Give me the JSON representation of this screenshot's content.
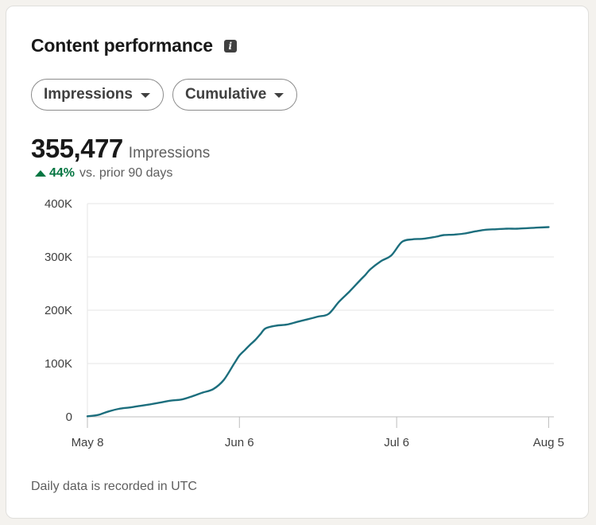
{
  "card": {
    "title": "Content performance",
    "info_icon": "info-icon",
    "metric_dropdown": "Impressions",
    "mode_dropdown": "Cumulative",
    "metric_value": "355,477",
    "metric_label": "Impressions",
    "change_pct": "44%",
    "change_text": "vs. prior 90 days",
    "change_color": "#057642",
    "footer": "Daily data is recorded in UTC"
  },
  "chart_data": {
    "type": "line",
    "title": "",
    "xlabel": "",
    "ylabel": "",
    "ylim": [
      0,
      400000
    ],
    "yticks": [
      0,
      100000,
      200000,
      300000,
      400000
    ],
    "ytick_labels": [
      "0",
      "100K",
      "200K",
      "300K",
      "400K"
    ],
    "xlim": [
      0,
      89
    ],
    "xticks": [
      0,
      29,
      59,
      88
    ],
    "xtick_labels": [
      "May 8",
      "Jun 6",
      "Jul 6",
      "Aug 5"
    ],
    "grid": true,
    "line_color": "#1c6e7d",
    "series": [
      {
        "name": "",
        "x": [
          0,
          2,
          4,
          6,
          8,
          10,
          12,
          14,
          16,
          18,
          20,
          22,
          24,
          26,
          28,
          29,
          30,
          31,
          32,
          33,
          34,
          36,
          38,
          40,
          42,
          44,
          46,
          48,
          50,
          52,
          53,
          54,
          56,
          58,
          60,
          62,
          64,
          66,
          67,
          68,
          70,
          72,
          74,
          76,
          78,
          80,
          82,
          84,
          86,
          88
        ],
        "y": [
          1000,
          3500,
          10000,
          15000,
          17500,
          20500,
          23500,
          27000,
          30500,
          32500,
          38500,
          45500,
          52000,
          69000,
          100000,
          115000,
          125000,
          135000,
          144000,
          155000,
          166000,
          171000,
          173000,
          178000,
          183000,
          188000,
          193000,
          216000,
          235000,
          256000,
          266000,
          277000,
          292000,
          303000,
          328000,
          333000,
          334000,
          337000,
          339000,
          341000,
          342000,
          344000,
          348000,
          351000,
          352000,
          353000,
          353000,
          354000,
          355000,
          356000
        ]
      }
    ]
  }
}
